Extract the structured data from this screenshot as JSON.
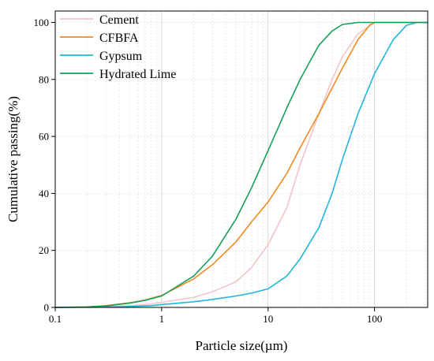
{
  "chart_data": {
    "type": "line",
    "x_scale": "log",
    "xlabel": "Particle size(µm)",
    "ylabel": "Cumulative passing(%)",
    "xlim": [
      0.1,
      316
    ],
    "ylim": [
      0,
      104
    ],
    "x_ticks": [
      {
        "value": 0.1,
        "label": "0.1"
      },
      {
        "value": 1,
        "label": "1"
      },
      {
        "value": 10,
        "label": "10"
      },
      {
        "value": 100,
        "label": "100"
      }
    ],
    "y_ticks": [
      {
        "value": 0,
        "label": "0"
      },
      {
        "value": 20,
        "label": "20"
      },
      {
        "value": 40,
        "label": "40"
      },
      {
        "value": 60,
        "label": "60"
      },
      {
        "value": 80,
        "label": "80"
      },
      {
        "value": 100,
        "label": "100"
      }
    ],
    "grid": true,
    "legend_position": "top-left",
    "series": [
      {
        "name": "Cement",
        "color": "#f2c4c8",
        "points": [
          [
            0.1,
            0
          ],
          [
            0.3,
            0.2
          ],
          [
            0.5,
            0.6
          ],
          [
            0.8,
            1.2
          ],
          [
            1,
            1.8
          ],
          [
            2,
            3.5
          ],
          [
            3,
            5.5
          ],
          [
            5,
            9
          ],
          [
            7,
            14
          ],
          [
            10,
            22
          ],
          [
            15,
            35
          ],
          [
            20,
            50
          ],
          [
            30,
            68
          ],
          [
            40,
            80
          ],
          [
            50,
            88
          ],
          [
            70,
            96
          ],
          [
            100,
            100
          ],
          [
            316,
            100
          ]
        ]
      },
      {
        "name": "CFBFA",
        "color": "#f28a1e",
        "points": [
          [
            0.1,
            0
          ],
          [
            0.2,
            0.2
          ],
          [
            0.3,
            0.6
          ],
          [
            0.5,
            1.6
          ],
          [
            0.7,
            2.6
          ],
          [
            1,
            4.2
          ],
          [
            2,
            10
          ],
          [
            3,
            15
          ],
          [
            5,
            23
          ],
          [
            7,
            30
          ],
          [
            10,
            37
          ],
          [
            15,
            47
          ],
          [
            20,
            56
          ],
          [
            30,
            68
          ],
          [
            40,
            77
          ],
          [
            50,
            84
          ],
          [
            70,
            94
          ],
          [
            90,
            99
          ],
          [
            100,
            100
          ],
          [
            316,
            100
          ]
        ]
      },
      {
        "name": "Gypsum",
        "color": "#1fb6dc",
        "points": [
          [
            0.1,
            0
          ],
          [
            0.3,
            0.1
          ],
          [
            0.5,
            0.3
          ],
          [
            0.8,
            0.6
          ],
          [
            1,
            1
          ],
          [
            2,
            2
          ],
          [
            3,
            2.8
          ],
          [
            5,
            4
          ],
          [
            7,
            5
          ],
          [
            10,
            6.5
          ],
          [
            15,
            11
          ],
          [
            20,
            17
          ],
          [
            30,
            28
          ],
          [
            40,
            40
          ],
          [
            50,
            52
          ],
          [
            70,
            68
          ],
          [
            100,
            82
          ],
          [
            150,
            94
          ],
          [
            200,
            99
          ],
          [
            250,
            100
          ],
          [
            316,
            100
          ]
        ]
      },
      {
        "name": "Hydrated Lime",
        "color": "#15a05a",
        "points": [
          [
            0.1,
            0
          ],
          [
            0.2,
            0.1
          ],
          [
            0.3,
            0.5
          ],
          [
            0.5,
            1.5
          ],
          [
            0.7,
            2.5
          ],
          [
            1,
            4
          ],
          [
            2,
            11
          ],
          [
            3,
            18
          ],
          [
            5,
            31
          ],
          [
            7,
            42
          ],
          [
            10,
            55
          ],
          [
            15,
            70
          ],
          [
            20,
            80
          ],
          [
            30,
            92
          ],
          [
            40,
            97
          ],
          [
            50,
            99.3
          ],
          [
            70,
            100
          ],
          [
            316,
            100
          ]
        ]
      }
    ]
  }
}
